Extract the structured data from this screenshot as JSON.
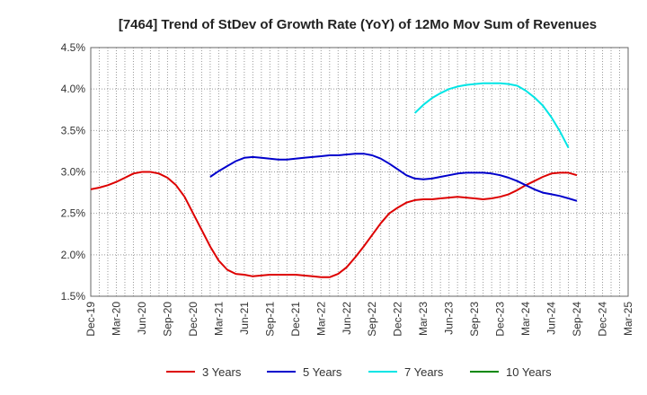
{
  "chart_data": {
    "type": "line",
    "title": "[7464]  Trend of StDev of Growth Rate (YoY) of 12Mo Mov Sum of Revenues",
    "xlabel": "",
    "ylabel": "",
    "ylim": [
      1.5,
      4.5
    ],
    "y_ticks": [
      1.5,
      2.0,
      2.5,
      3.0,
      3.5,
      4.0,
      4.5
    ],
    "y_tick_labels": [
      "1.5%",
      "2.0%",
      "2.5%",
      "3.0%",
      "3.5%",
      "4.0%",
      "4.5%"
    ],
    "x_tick_labels": [
      "Dec-19",
      "Mar-20",
      "Jun-20",
      "Sep-20",
      "Dec-20",
      "Mar-21",
      "Jun-21",
      "Sep-21",
      "Dec-21",
      "Mar-22",
      "Jun-22",
      "Sep-22",
      "Dec-22",
      "Mar-23",
      "Jun-23",
      "Sep-23",
      "Dec-23",
      "Mar-24",
      "Jun-24",
      "Sep-24",
      "Dec-24",
      "Mar-25"
    ],
    "x_start": "Dec-19",
    "x_step_months": 1,
    "series": [
      {
        "name": "3 Years",
        "color": "#dd0000",
        "start_index": 0,
        "values": [
          2.79,
          2.81,
          2.84,
          2.88,
          2.93,
          2.98,
          3.0,
          3.0,
          2.98,
          2.93,
          2.84,
          2.7,
          2.5,
          2.3,
          2.1,
          1.93,
          1.82,
          1.77,
          1.76,
          1.74,
          1.75,
          1.76,
          1.76,
          1.76,
          1.76,
          1.75,
          1.74,
          1.73,
          1.73,
          1.77,
          1.85,
          1.97,
          2.1,
          2.24,
          2.38,
          2.5,
          2.57,
          2.63,
          2.66,
          2.67,
          2.67,
          2.68,
          2.69,
          2.7,
          2.69,
          2.68,
          2.67,
          2.68,
          2.7,
          2.73,
          2.78,
          2.84,
          2.89,
          2.94,
          2.98,
          2.99,
          2.99,
          2.96
        ]
      },
      {
        "name": "5 Years",
        "color": "#0000cc",
        "start_index": 14,
        "values": [
          2.94,
          3.01,
          3.07,
          3.13,
          3.17,
          3.18,
          3.17,
          3.16,
          3.15,
          3.15,
          3.16,
          3.17,
          3.18,
          3.19,
          3.2,
          3.2,
          3.21,
          3.22,
          3.22,
          3.2,
          3.16,
          3.1,
          3.03,
          2.96,
          2.92,
          2.91,
          2.92,
          2.94,
          2.96,
          2.98,
          2.99,
          2.99,
          2.99,
          2.98,
          2.96,
          2.93,
          2.89,
          2.84,
          2.79,
          2.75,
          2.73,
          2.71,
          2.68,
          2.65
        ]
      },
      {
        "name": "7 Years",
        "color": "#00e5e5",
        "start_index": 38,
        "values": [
          3.71,
          3.81,
          3.89,
          3.95,
          4.0,
          4.03,
          4.05,
          4.06,
          4.07,
          4.07,
          4.07,
          4.06,
          4.04,
          3.98,
          3.9,
          3.8,
          3.66,
          3.49,
          3.29
        ]
      },
      {
        "name": "10 Years",
        "color": "#008800",
        "start_index": 0,
        "values": []
      }
    ],
    "legend_position": "bottom-center",
    "grid": true
  }
}
